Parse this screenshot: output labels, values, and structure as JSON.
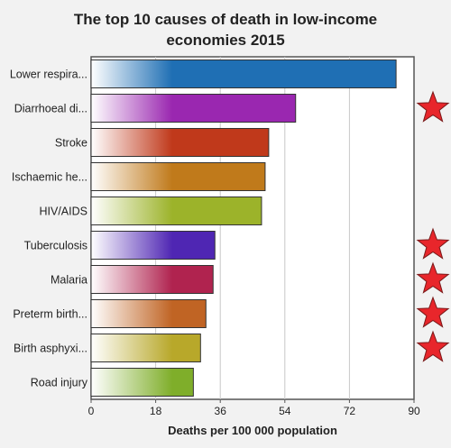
{
  "chart_data": {
    "type": "bar",
    "orientation": "horizontal",
    "title_lines": [
      "The top 10 causes of death in low-income",
      "economies 2015"
    ],
    "xlabel": "Deaths per 100 000 population",
    "ylabel": "",
    "xlim": [
      0,
      90
    ],
    "xticks": [
      0,
      18,
      36,
      54,
      72,
      90
    ],
    "grid": true,
    "categories": [
      "Lower respira...",
      "Diarrhoeal di...",
      "Stroke",
      "Ischaemic he...",
      "HIV/AIDS",
      "Tuberculosis",
      "Malaria",
      "Preterm birth...",
      "Birth asphyxi...",
      "Road injury"
    ],
    "values": [
      85,
      57,
      49.5,
      48.5,
      47.5,
      34.5,
      34,
      32,
      30.5,
      28.5
    ],
    "colors": [
      "#1f6fb4",
      "#9a27b0",
      "#c0391b",
      "#c07a1b",
      "#9cb32a",
      "#4f26b3",
      "#b0234f",
      "#c06424",
      "#b8a82a",
      "#7fae2a"
    ],
    "starred": [
      false,
      true,
      false,
      false,
      false,
      true,
      true,
      true,
      true,
      false
    ],
    "star_color": "#e8262b"
  }
}
